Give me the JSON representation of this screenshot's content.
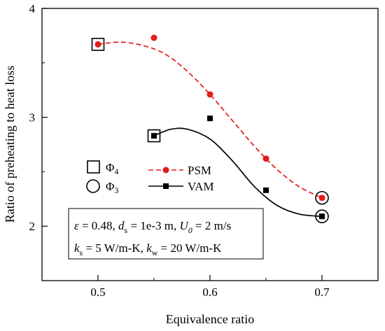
{
  "chart_data": {
    "type": "line",
    "xlabel": "Equivalence ratio",
    "ylabel": "Ratio of preheating to heat loss",
    "xlim": [
      0.45,
      0.75
    ],
    "ylim": [
      1.5,
      4.0
    ],
    "xticks": [
      "0.5",
      "0.6",
      "0.7"
    ],
    "yticks": [
      "2",
      "3",
      "4"
    ],
    "xtick_values": [
      0.5,
      0.6,
      0.7
    ],
    "ytick_values": [
      2,
      3,
      4
    ],
    "grid": false,
    "series": [
      {
        "name": "PSM",
        "color": "#e41a1c",
        "line_style": "dashed",
        "marker": "circle",
        "x": [
          0.5,
          0.55,
          0.6,
          0.65,
          0.7
        ],
        "y": [
          3.67,
          3.73,
          3.21,
          2.62,
          2.26
        ]
      },
      {
        "name": "VAM",
        "color": "#000000",
        "line_style": "solid",
        "marker": "square",
        "x": [
          0.55,
          0.6,
          0.65,
          0.7
        ],
        "y": [
          2.83,
          2.99,
          2.33,
          2.09
        ]
      }
    ],
    "fit_curves": {
      "PSM": {
        "x": [
          0.5,
          0.52,
          0.54,
          0.56,
          0.58,
          0.6,
          0.62,
          0.64,
          0.66,
          0.68,
          0.7
        ],
        "y": [
          3.67,
          3.69,
          3.66,
          3.58,
          3.42,
          3.21,
          2.97,
          2.73,
          2.52,
          2.36,
          2.26
        ]
      },
      "VAM": {
        "x": [
          0.55,
          0.565,
          0.58,
          0.6,
          0.62,
          0.64,
          0.66,
          0.68,
          0.7
        ],
        "y": [
          2.83,
          2.89,
          2.89,
          2.8,
          2.6,
          2.36,
          2.19,
          2.11,
          2.09
        ]
      }
    },
    "highlighted_points": [
      {
        "marker": "open-square",
        "x": 0.5,
        "y": 3.67
      },
      {
        "marker": "open-square",
        "x": 0.55,
        "y": 2.83
      },
      {
        "marker": "open-circle",
        "x": 0.7,
        "y": 2.26
      },
      {
        "marker": "open-circle",
        "x": 0.7,
        "y": 2.09
      }
    ],
    "symbol_legend": [
      {
        "marker": "open-square",
        "label": "Φ",
        "subscript": "4"
      },
      {
        "marker": "open-circle",
        "label": "Φ",
        "subscript": "3"
      }
    ],
    "parameters": {
      "line1": [
        {
          "text": "ε",
          "style": "italic"
        },
        {
          "text": " = 0.48, ",
          "style": "normal"
        },
        {
          "text": "d",
          "style": "italic"
        },
        {
          "text": "s",
          "style": "sub"
        },
        {
          "text": " = 1e-3 m, ",
          "style": "normal"
        },
        {
          "text": "U",
          "style": "italic"
        },
        {
          "text": "0",
          "style": "sub-italic"
        },
        {
          "text": " = 2 m/s",
          "style": "normal"
        }
      ],
      "line2": [
        {
          "text": "k",
          "style": "italic"
        },
        {
          "text": "s",
          "style": "sub"
        },
        {
          "text": " = 5 W/m-K, ",
          "style": "normal"
        },
        {
          "text": "k",
          "style": "italic"
        },
        {
          "text": "w",
          "style": "sub"
        },
        {
          "text": " = 20 W/m-K",
          "style": "normal"
        }
      ]
    }
  }
}
